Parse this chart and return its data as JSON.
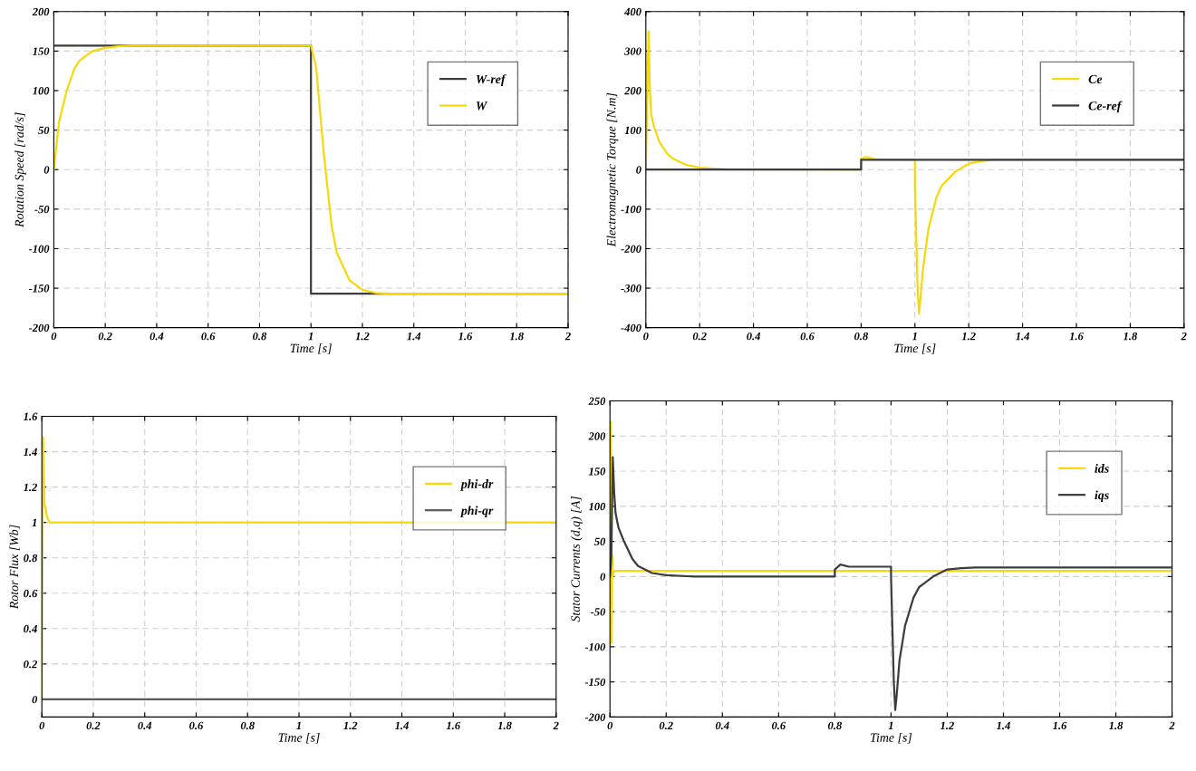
{
  "chart_data": [
    {
      "type": "line",
      "xlabel": "Time [s]",
      "ylabel": "Rotation Speed [rad/s]",
      "xlim": [
        0,
        2
      ],
      "ylim": [
        -200,
        200
      ],
      "xticks": [
        0,
        0.2,
        0.4,
        0.6,
        0.8,
        1,
        1.2,
        1.4,
        1.6,
        1.8,
        2
      ],
      "yticks": [
        -200,
        -150,
        -100,
        -50,
        0,
        50,
        100,
        150,
        200
      ],
      "grid": true,
      "legend": "top right",
      "line_style": "solid",
      "marker": "none",
      "series": [
        {
          "name": "W-ref",
          "color": "#3c3c3c",
          "x": [
            0,
            1,
            1,
            2
          ],
          "values": [
            157,
            157,
            -157,
            -157
          ]
        },
        {
          "name": "W",
          "color": "#f5d90a",
          "x": [
            0,
            0.02,
            0.05,
            0.08,
            0.1,
            0.15,
            0.2,
            0.25,
            0.3,
            0.5,
            0.8,
            1.0,
            1.02,
            1.05,
            1.08,
            1.1,
            1.15,
            1.2,
            1.25,
            1.3,
            1.4,
            2
          ],
          "values": [
            0,
            60,
            100,
            128,
            138,
            150,
            154,
            156,
            157,
            157,
            157,
            157,
            130,
            20,
            -70,
            -105,
            -140,
            -152,
            -156,
            -157,
            -157,
            -157
          ]
        }
      ]
    },
    {
      "type": "line",
      "xlabel": "Time [s]",
      "ylabel": "Electromagnetic Torque [N.m]",
      "xlim": [
        0,
        2
      ],
      "ylim": [
        -400,
        400
      ],
      "xticks": [
        0,
        0.2,
        0.4,
        0.6,
        0.8,
        1,
        1.2,
        1.4,
        1.6,
        1.8,
        2
      ],
      "yticks": [
        -400,
        -300,
        -200,
        -100,
        0,
        100,
        200,
        300,
        400
      ],
      "grid": true,
      "legend": "top right",
      "line_style": "solid",
      "marker": "none",
      "series": [
        {
          "name": "Ce",
          "color": "#f5d90a",
          "x": [
            0,
            0.01,
            0.015,
            0.02,
            0.03,
            0.05,
            0.08,
            0.1,
            0.15,
            0.2,
            0.3,
            0.8,
            0.8,
            0.82,
            0.85,
            1.0,
            1.0,
            1.01,
            1.015,
            1.02,
            1.03,
            1.05,
            1.08,
            1.1,
            1.15,
            1.2,
            1.25,
            1.3,
            2
          ],
          "values": [
            0,
            350,
            200,
            140,
            110,
            70,
            40,
            28,
            12,
            5,
            1,
            0,
            28,
            32,
            26,
            25,
            -50,
            -300,
            -365,
            -330,
            -250,
            -150,
            -70,
            -40,
            -5,
            15,
            22,
            25,
            25
          ]
        },
        {
          "name": "Ce-ref",
          "color": "#3c3c3c",
          "x": [
            0,
            0.8,
            0.8,
            2
          ],
          "values": [
            0,
            0,
            25,
            25
          ]
        }
      ]
    },
    {
      "type": "line",
      "xlabel": "Time [s]",
      "ylabel": "Rotor Flux [Wb]",
      "xlim": [
        0,
        2
      ],
      "ylim": [
        -0.1,
        1.6
      ],
      "xticks": [
        0,
        0.2,
        0.4,
        0.6,
        0.8,
        1,
        1.2,
        1.4,
        1.6,
        1.8,
        2
      ],
      "yticks": [
        0,
        0.2,
        0.4,
        0.6,
        0.8,
        1,
        1.2,
        1.4,
        1.6
      ],
      "grid": true,
      "legend": "top right",
      "line_style": "solid",
      "marker": "none",
      "series": [
        {
          "name": "phi-dr",
          "color": "#f5d90a",
          "x": [
            0,
            0.005,
            0.01,
            0.015,
            0.02,
            0.03,
            0.04,
            0.05,
            2
          ],
          "values": [
            0,
            1.48,
            1.1,
            1.08,
            1.03,
            1.0,
            1.0,
            1.0,
            1.0
          ]
        },
        {
          "name": "phi-qr",
          "color": "#5a5a5a",
          "x": [
            0,
            2
          ],
          "values": [
            0,
            0
          ]
        }
      ]
    },
    {
      "type": "line",
      "xlabel": "Time [s]",
      "ylabel": "Stator Currents (d,q) [A]",
      "xlim": [
        0,
        2
      ],
      "ylim": [
        -200,
        250
      ],
      "xticks": [
        0,
        0.2,
        0.4,
        0.6,
        0.8,
        1,
        1.2,
        1.4,
        1.6,
        1.8,
        2
      ],
      "yticks": [
        -200,
        -150,
        -100,
        -50,
        0,
        50,
        100,
        150,
        200,
        250
      ],
      "grid": true,
      "legend": "top right",
      "line_style": "solid",
      "marker": "none",
      "series": [
        {
          "name": "ids",
          "color": "#f5d90a",
          "x": [
            0,
            0.003,
            0.006,
            0.008,
            0.01,
            0.012,
            0.015,
            0.02,
            2
          ],
          "values": [
            0,
            220,
            -95,
            30,
            0,
            5,
            7,
            8,
            8
          ]
        },
        {
          "name": "iqs",
          "color": "#3c3c3c",
          "x": [
            0,
            0.005,
            0.01,
            0.015,
            0.02,
            0.03,
            0.05,
            0.08,
            0.1,
            0.15,
            0.2,
            0.3,
            0.5,
            0.8,
            0.8,
            0.82,
            0.85,
            1.0,
            1.0,
            1.01,
            1.015,
            1.02,
            1.03,
            1.05,
            1.08,
            1.1,
            1.15,
            1.2,
            1.25,
            1.3,
            1.5,
            2
          ],
          "values": [
            0,
            30,
            170,
            120,
            90,
            70,
            50,
            25,
            15,
            5,
            2,
            0,
            0,
            0,
            10,
            17,
            14,
            14,
            0,
            -150,
            -190,
            -170,
            -120,
            -70,
            -30,
            -15,
            0,
            10,
            12,
            13,
            13,
            13
          ]
        }
      ]
    }
  ]
}
